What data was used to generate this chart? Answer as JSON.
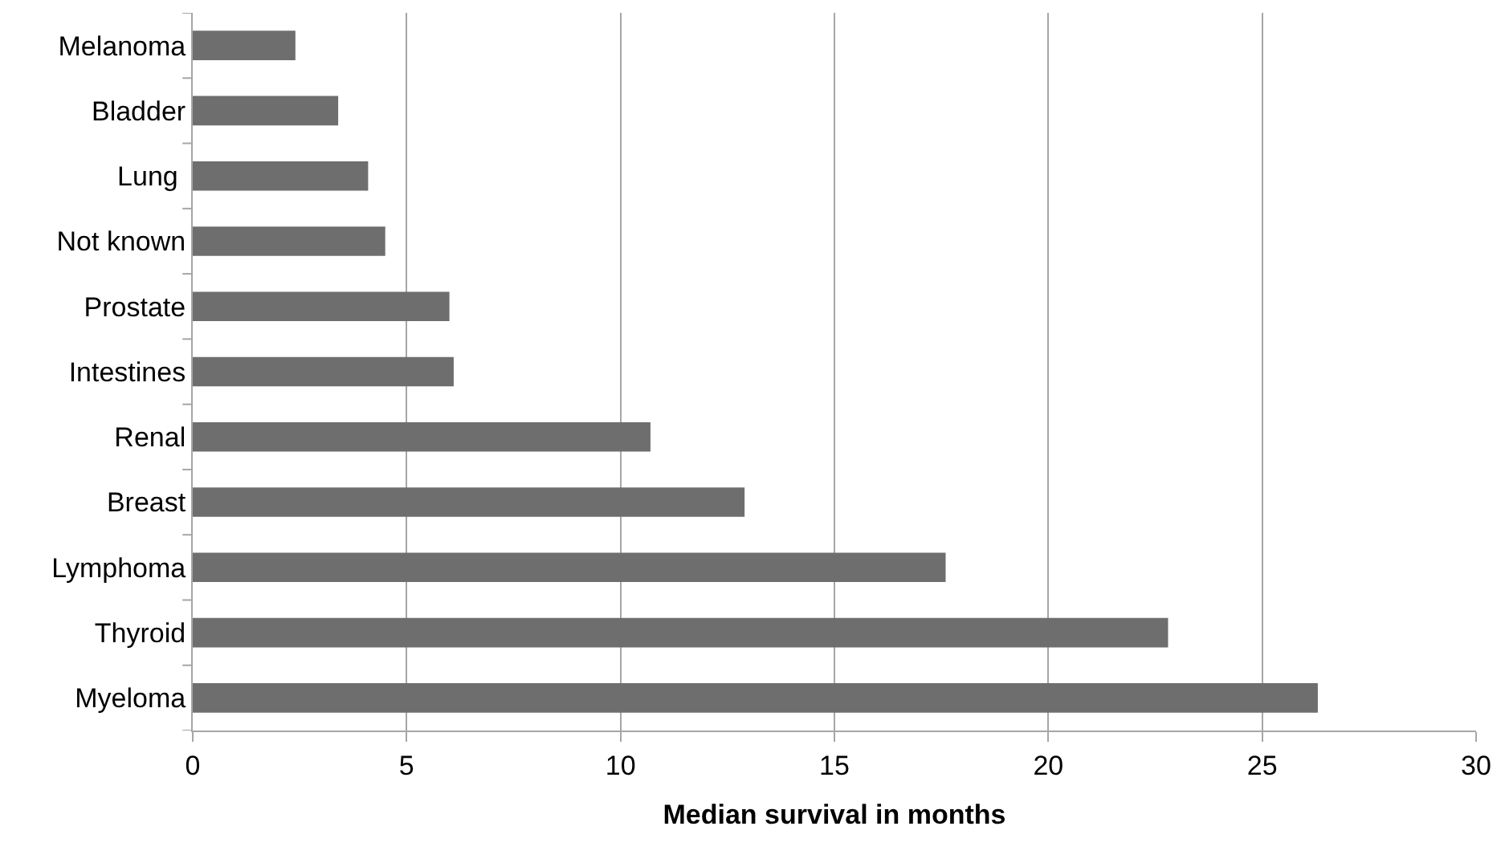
{
  "chart_data": {
    "type": "bar",
    "orientation": "horizontal",
    "xlabel": "Median survival in months",
    "categories": [
      "Melanoma",
      "Bladder",
      "Lung ",
      "Not known",
      "Prostate",
      "Intestines",
      "Renal",
      "Breast",
      "Lymphoma",
      "Thyroid",
      "Myeloma"
    ],
    "values": [
      2.4,
      3.4,
      4.1,
      4.5,
      6.0,
      6.1,
      10.7,
      12.9,
      17.6,
      22.8,
      26.3
    ],
    "color": "#6e6e6e",
    "xlim": [
      0,
      30
    ],
    "xticks": [
      0,
      5,
      10,
      15,
      20,
      25,
      30
    ],
    "grid": "x",
    "legend": false
  }
}
